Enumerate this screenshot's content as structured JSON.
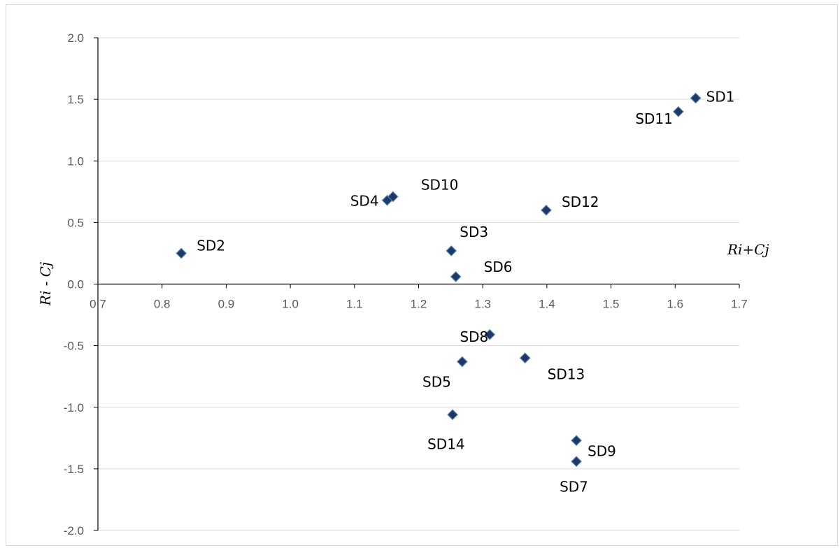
{
  "chart_data": {
    "type": "scatter",
    "xlabel": "Ri+Cj",
    "ylabel": "Ri - Cj",
    "xlim": [
      0.7,
      1.7
    ],
    "ylim": [
      -2.0,
      2.0
    ],
    "xticks": [
      "0.7",
      "0.8",
      "0.9",
      "1.0",
      "1.1",
      "1.2",
      "1.3",
      "1.4",
      "1.5",
      "1.6",
      "1.7"
    ],
    "yticks": [
      "2.0",
      "1.5",
      "1.0",
      "0.5",
      "0.0",
      "-0.5",
      "-1.0",
      "-1.5",
      "-2.0"
    ],
    "grid": "horizontal",
    "marker_color": "#1f3864",
    "marker_stroke": "#4f81bd",
    "points": [
      {
        "label": "SD1",
        "x": 1.632,
        "y": 1.51
      },
      {
        "label": "SD2",
        "x": 0.83,
        "y": 0.25
      },
      {
        "label": "SD3",
        "x": 1.251,
        "y": 0.27
      },
      {
        "label": "SD4",
        "x": 1.151,
        "y": 0.68
      },
      {
        "label": "SD5",
        "x": 1.268,
        "y": -0.63
      },
      {
        "label": "SD6",
        "x": 1.258,
        "y": 0.06
      },
      {
        "label": "SD7",
        "x": 1.446,
        "y": -1.44
      },
      {
        "label": "SD8",
        "x": 1.311,
        "y": -0.41
      },
      {
        "label": "SD9",
        "x": 1.446,
        "y": -1.27
      },
      {
        "label": "SD10",
        "x": 1.16,
        "y": 0.71
      },
      {
        "label": "SD11",
        "x": 1.605,
        "y": 1.4
      },
      {
        "label": "SD12",
        "x": 1.399,
        "y": 0.6
      },
      {
        "label": "SD13",
        "x": 1.366,
        "y": -0.6
      },
      {
        "label": "SD14",
        "x": 1.253,
        "y": -1.06
      }
    ]
  }
}
